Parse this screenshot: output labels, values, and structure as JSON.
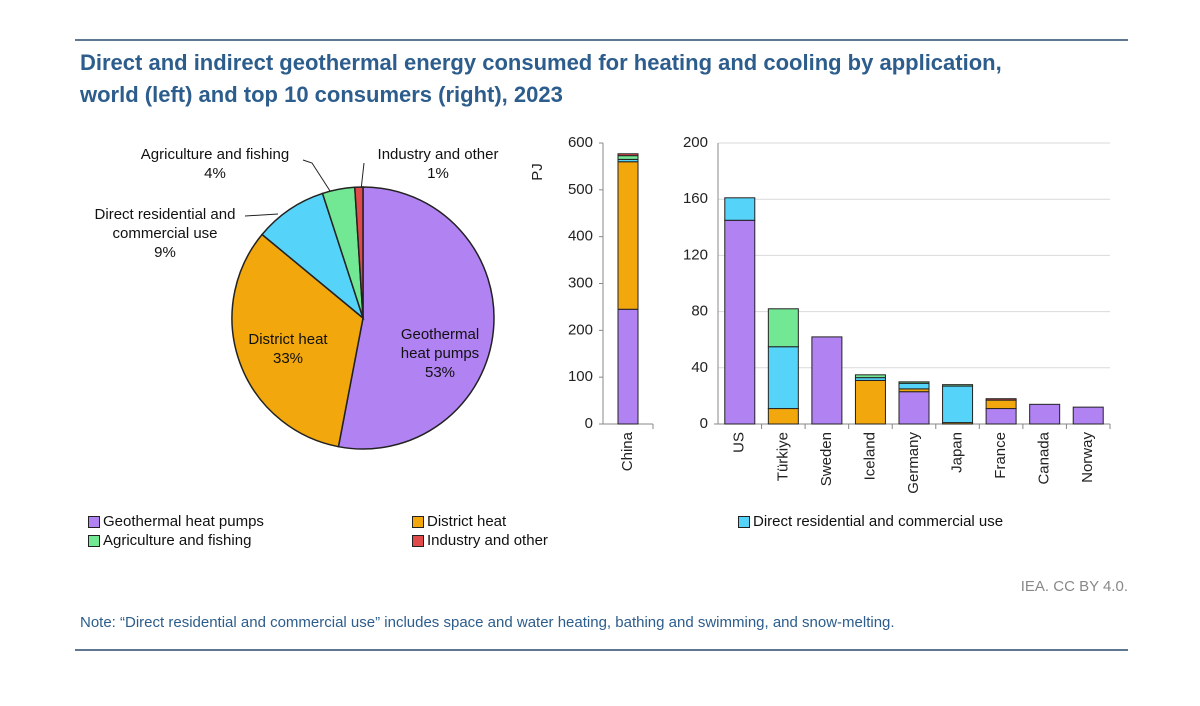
{
  "title": "Direct and indirect geothermal energy consumed for heating and cooling by application, world (left) and top 10 consumers (right), 2023",
  "source": "IEA. CC BY 4.0.",
  "note": "Note: “Direct residential and commercial use” includes space and water heating, bathing and swimming, and snow-melting.",
  "chart_data": [
    {
      "type": "pie",
      "categories": [
        "Geothermal heat pumps",
        "District heat",
        "Direct residential and commercial use",
        "Agriculture and fishing",
        "Industry and other"
      ],
      "values": [
        53,
        33,
        9,
        4,
        1
      ],
      "value_labels": [
        "53%",
        "33%",
        "9%",
        "4%",
        "1%"
      ],
      "colors": [
        "#b182f2",
        "#f2a70c",
        "#55d3f8",
        "#72e894",
        "#e04a4a"
      ]
    },
    {
      "type": "stacked_bar",
      "y_label": "PJ",
      "categories": [
        "China"
      ],
      "series": [
        {
          "name": "Geothermal heat pumps",
          "color": "#b182f2",
          "values": [
            245
          ]
        },
        {
          "name": "District heat",
          "color": "#f2a70c",
          "values": [
            315
          ]
        },
        {
          "name": "Direct residential and commercial use",
          "color": "#55d3f8",
          "values": [
            5
          ]
        },
        {
          "name": "Agriculture and fishing",
          "color": "#72e894",
          "values": [
            8
          ]
        },
        {
          "name": "Industry and other",
          "color": "#e04a4a",
          "values": [
            4
          ]
        }
      ],
      "ylim": [
        0,
        600
      ],
      "yticks": [
        0,
        100,
        200,
        300,
        400,
        500,
        600
      ]
    },
    {
      "type": "stacked_bar",
      "categories": [
        "US",
        "Türkiye",
        "Sweden",
        "Iceland",
        "Germany",
        "Japan",
        "France",
        "Canada",
        "Norway"
      ],
      "series": [
        {
          "name": "Geothermal heat pumps",
          "color": "#b182f2",
          "values": [
            145,
            0,
            62,
            0,
            23,
            0,
            11,
            14,
            12
          ]
        },
        {
          "name": "District heat",
          "color": "#f2a70c",
          "values": [
            0,
            11,
            0,
            31,
            2,
            1,
            6,
            0,
            0
          ]
        },
        {
          "name": "Direct residential and commercial use",
          "color": "#55d3f8",
          "values": [
            16,
            44,
            0,
            2,
            4,
            26,
            0,
            0,
            0
          ]
        },
        {
          "name": "Agriculture and fishing",
          "color": "#72e894",
          "values": [
            0,
            27,
            0,
            2,
            1,
            1,
            0,
            0,
            0
          ]
        },
        {
          "name": "Industry and other",
          "color": "#e04a4a",
          "values": [
            0,
            0,
            0,
            0,
            0,
            0,
            1,
            0,
            0
          ]
        }
      ],
      "ylim": [
        0,
        200
      ],
      "yticks": [
        0,
        40,
        80,
        120,
        160,
        200
      ],
      "grid": true
    }
  ]
}
